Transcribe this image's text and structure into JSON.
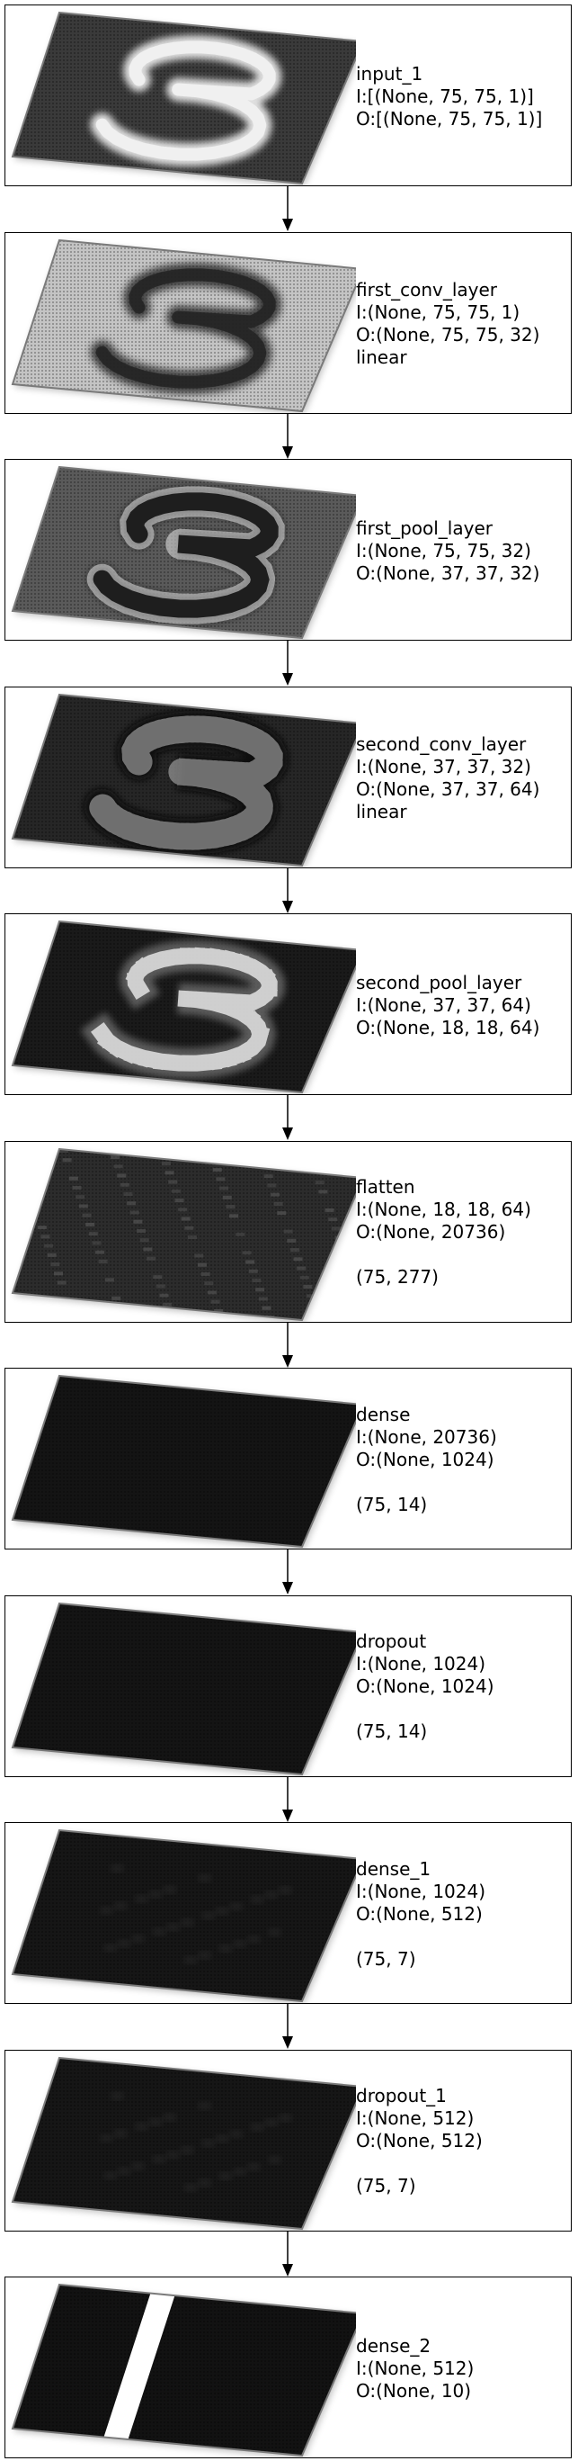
{
  "layers": [
    {
      "name": "input_1",
      "input": "I:[(None, 75, 75, 1)]",
      "output": "O:[(None, 75, 75, 1)]",
      "activation": "",
      "shape": "",
      "viz": {
        "bg": "#3a3a3a",
        "pattern": "digit",
        "stroke": "#f2f2f2",
        "glow": 0.9
      }
    },
    {
      "name": "first_conv_layer",
      "input": "I:(None, 75, 75, 1)",
      "output": "O:(None, 75, 75, 32)",
      "activation": "linear",
      "shape": "",
      "viz": {
        "bg": "#c4c4c4",
        "pattern": "digit",
        "stroke": "#202020",
        "glow": 0.8
      }
    },
    {
      "name": "first_pool_layer",
      "input": "I:(None, 75, 75, 32)",
      "output": "O:(None, 37, 37, 32)",
      "activation": "",
      "shape": "",
      "viz": {
        "bg": "#5a5a5a",
        "pattern": "digit-outline",
        "stroke": "#e8e8e8",
        "glow": 0.8
      }
    },
    {
      "name": "second_conv_layer",
      "input": "I:(None, 37, 37, 32)",
      "output": "O:(None, 37, 37, 64)",
      "activation": "linear",
      "shape": "",
      "viz": {
        "bg": "#262626",
        "pattern": "digit-dark",
        "stroke": "#9a9a9a",
        "glow": 0.5
      }
    },
    {
      "name": "second_pool_layer",
      "input": "I:(None, 37, 37, 64)",
      "output": "O:(None, 18, 18, 64)",
      "activation": "",
      "shape": "",
      "viz": {
        "bg": "#1a1a1a",
        "pattern": "digit-blocky",
        "stroke": "#dcdcdc",
        "glow": 0.8
      }
    },
    {
      "name": "flatten",
      "input": "I:(None, 18, 18, 64)",
      "output": "O:(None, 20736)",
      "activation": "",
      "shape": "(75, 277)",
      "viz": {
        "bg": "#2c2c2c",
        "pattern": "noise",
        "stroke": "#606060",
        "glow": 0.4
      }
    },
    {
      "name": "dense",
      "input": "I:(None, 20736)",
      "output": "O:(None, 1024)",
      "activation": "",
      "shape": "(75, 14)",
      "viz": {
        "bg": "#141414",
        "pattern": "none",
        "stroke": "#2a2a2a",
        "glow": 0.2
      }
    },
    {
      "name": "dropout",
      "input": "I:(None, 1024)",
      "output": "O:(None, 1024)",
      "activation": "",
      "shape": "(75, 14)",
      "viz": {
        "bg": "#141414",
        "pattern": "none",
        "stroke": "#2a2a2a",
        "glow": 0.2
      }
    },
    {
      "name": "dense_1",
      "input": "I:(None, 1024)",
      "output": "O:(None, 512)",
      "activation": "",
      "shape": "(75, 7)",
      "viz": {
        "bg": "#161616",
        "pattern": "faint",
        "stroke": "#333333",
        "glow": 0.3
      }
    },
    {
      "name": "dropout_1",
      "input": "I:(None, 512)",
      "output": "O:(None, 512)",
      "activation": "",
      "shape": "(75, 7)",
      "viz": {
        "bg": "#161616",
        "pattern": "faint",
        "stroke": "#333333",
        "glow": 0.3
      }
    },
    {
      "name": "dense_2",
      "input": "I:(None, 512)",
      "output": "O:(None, 10)",
      "activation": "",
      "shape": "",
      "viz": {
        "bg": "#121212",
        "pattern": "split",
        "stroke": "#2a2a2a",
        "glow": 0.2
      }
    }
  ]
}
